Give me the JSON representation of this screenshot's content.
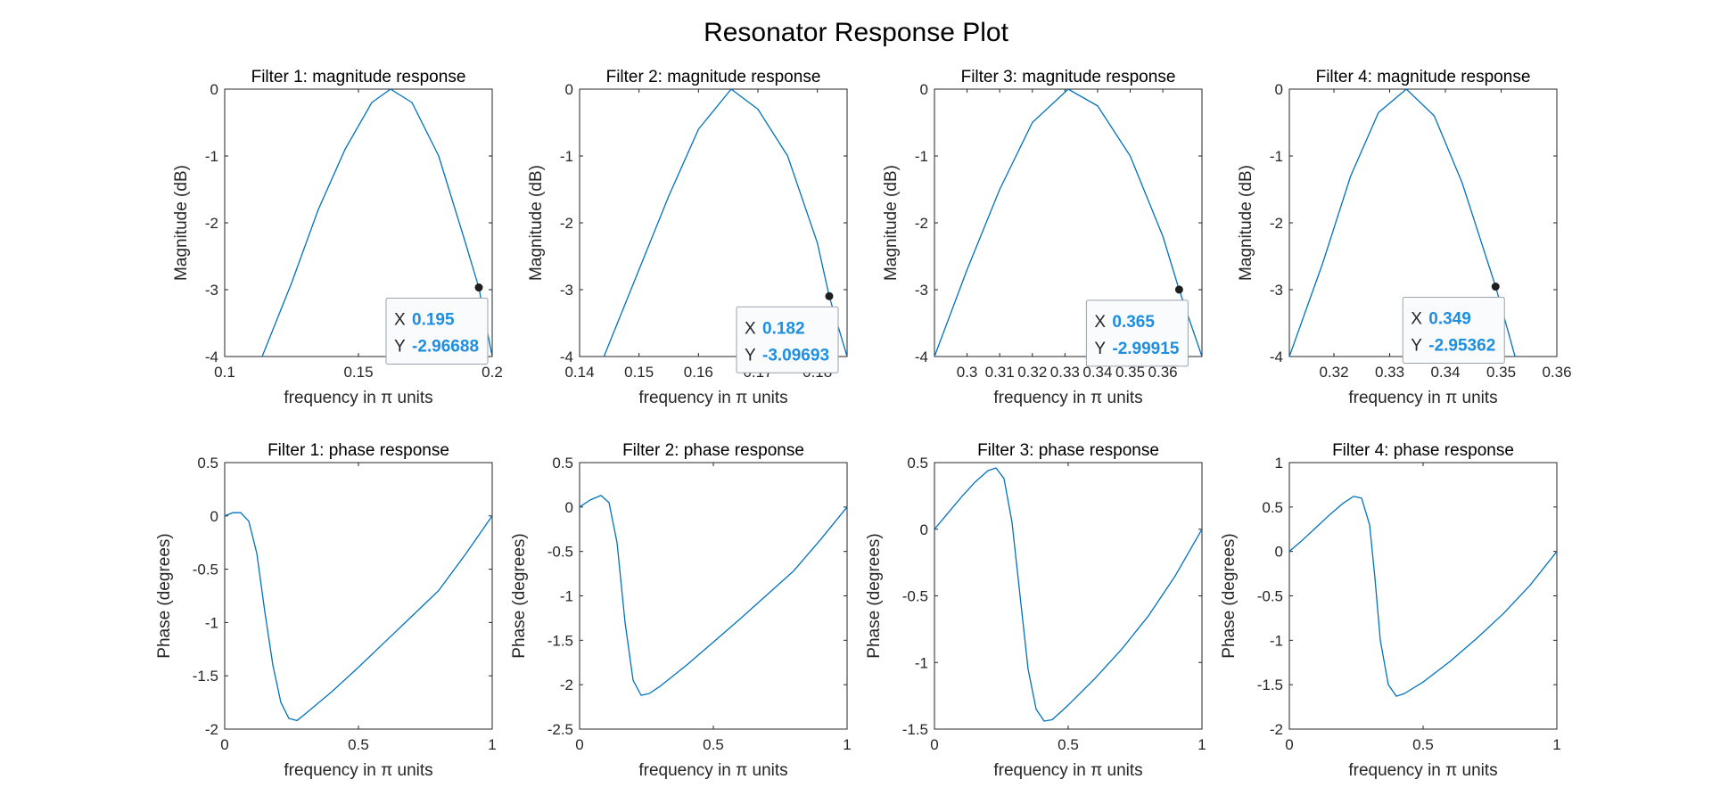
{
  "figure": {
    "title": "Resonator Response Plot"
  },
  "style": {
    "line_color": "#0072BD",
    "axis_color": "#262626",
    "datatip_value_color": "#1E8FE0"
  },
  "chart_data": [
    {
      "type": "line",
      "title": "Filter 1: magnitude response",
      "xlabel": "frequency in π units",
      "ylabel": "Magnitude (dB)",
      "xlim": [
        0.1,
        0.2
      ],
      "ylim": [
        -4,
        0
      ],
      "xticks": [
        0.1,
        0.15,
        0.2
      ],
      "xtick_labels": [
        "0.1",
        "0.15",
        "0.2"
      ],
      "yticks": [
        -4,
        -3,
        -2,
        -1,
        0
      ],
      "ytick_labels": [
        "-4",
        "-3",
        "-2",
        "-1",
        "0"
      ],
      "grid": false,
      "series": [
        {
          "x": [
            0.114,
            0.125,
            0.135,
            0.145,
            0.155,
            0.162,
            0.17,
            0.18,
            0.19,
            0.195,
            0.2
          ],
          "y": [
            -4,
            -2.9,
            -1.8,
            -0.9,
            -0.2,
            0,
            -0.2,
            -1.0,
            -2.3,
            -2.97,
            -4
          ]
        }
      ],
      "datatip": {
        "x_label": "X",
        "x_value": "0.195",
        "y_label": "Y",
        "y_value": "-2.96688",
        "x": 0.195,
        "y": -2.96688
      }
    },
    {
      "type": "line",
      "title": "Filter 2: magnitude response",
      "xlabel": "frequency in π units",
      "ylabel": "Magnitude (dB)",
      "xlim": [
        0.14,
        0.185
      ],
      "ylim": [
        -4,
        0
      ],
      "xticks": [
        0.14,
        0.15,
        0.16,
        0.17,
        0.18
      ],
      "xtick_labels": [
        "0.14",
        "0.15",
        "0.16",
        "0.17",
        "0.18"
      ],
      "yticks": [
        -4,
        -3,
        -2,
        -1,
        0
      ],
      "ytick_labels": [
        "-4",
        "-3",
        "-2",
        "-1",
        "0"
      ],
      "grid": false,
      "series": [
        {
          "x": [
            0.1441,
            0.15,
            0.155,
            0.16,
            0.1655,
            0.17,
            0.175,
            0.18,
            0.182,
            0.185
          ],
          "y": [
            -4,
            -2.7,
            -1.6,
            -0.6,
            0,
            -0.3,
            -1.0,
            -2.3,
            -3.1,
            -4
          ]
        }
      ],
      "datatip": {
        "x_label": "X",
        "x_value": "0.182",
        "y_label": "Y",
        "y_value": "-3.09693",
        "x": 0.182,
        "y": -3.09693
      }
    },
    {
      "type": "line",
      "title": "Filter 3: magnitude response",
      "xlabel": "frequency in π units",
      "ylabel": "Magnitude (dB)",
      "xlim": [
        0.29,
        0.372
      ],
      "ylim": [
        -4,
        0
      ],
      "xticks": [
        0.3,
        0.31,
        0.32,
        0.33,
        0.34,
        0.35,
        0.36
      ],
      "xtick_labels": [
        "0.3",
        "0.31",
        "0.32",
        "0.33",
        "0.34",
        "0.35",
        "0.36"
      ],
      "yticks": [
        -4,
        -3,
        -2,
        -1,
        0
      ],
      "ytick_labels": [
        "-4",
        "-3",
        "-2",
        "-1",
        "0"
      ],
      "grid": false,
      "series": [
        {
          "x": [
            0.29,
            0.3,
            0.31,
            0.32,
            0.331,
            0.34,
            0.35,
            0.36,
            0.365,
            0.372
          ],
          "y": [
            -4,
            -2.7,
            -1.5,
            -0.5,
            0,
            -0.25,
            -1.0,
            -2.2,
            -3.0,
            -4
          ]
        }
      ],
      "datatip": {
        "x_label": "X",
        "x_value": "0.365",
        "y_label": "Y",
        "y_value": "-2.99915",
        "x": 0.365,
        "y": -2.99915
      }
    },
    {
      "type": "line",
      "title": "Filter 4: magnitude response",
      "xlabel": "frequency in π units",
      "ylabel": "Magnitude (dB)",
      "xlim": [
        0.312,
        0.36
      ],
      "ylim": [
        -4,
        0
      ],
      "xticks": [
        0.32,
        0.33,
        0.34,
        0.35,
        0.36
      ],
      "xtick_labels": [
        "0.32",
        "0.33",
        "0.34",
        "0.35",
        "0.36"
      ],
      "yticks": [
        -4,
        -3,
        -2,
        -1,
        0
      ],
      "ytick_labels": [
        "-4",
        "-3",
        "-2",
        "-1",
        "0"
      ],
      "grid": false,
      "series": [
        {
          "x": [
            0.312,
            0.318,
            0.323,
            0.328,
            0.333,
            0.338,
            0.343,
            0.349,
            0.3525
          ],
          "y": [
            -4,
            -2.6,
            -1.3,
            -0.35,
            0,
            -0.4,
            -1.4,
            -2.95,
            -4
          ]
        }
      ],
      "datatip": {
        "x_label": "X",
        "x_value": "0.349",
        "y_label": "Y",
        "y_value": "-2.95362",
        "x": 0.349,
        "y": -2.95362
      }
    },
    {
      "type": "line",
      "title": "Filter 1: phase response",
      "xlabel": "frequency in π units",
      "ylabel": "Phase (degrees)",
      "xlim": [
        0,
        1
      ],
      "ylim": [
        -2,
        0.5
      ],
      "xticks": [
        0,
        0.5,
        1
      ],
      "xtick_labels": [
        "0",
        "0.5",
        "1"
      ],
      "yticks": [
        -2,
        -1.5,
        -1,
        -0.5,
        0,
        0.5
      ],
      "ytick_labels": [
        "-2",
        "-1.5",
        "-1",
        "-0.5",
        "0",
        "0.5"
      ],
      "grid": false,
      "series": [
        {
          "x": [
            0,
            0.03,
            0.06,
            0.09,
            0.12,
            0.15,
            0.18,
            0.21,
            0.24,
            0.27,
            0.3,
            0.4,
            0.5,
            0.6,
            0.7,
            0.8,
            0.9,
            1.0
          ],
          "y": [
            0,
            0.03,
            0.03,
            -0.05,
            -0.35,
            -0.9,
            -1.4,
            -1.75,
            -1.9,
            -1.92,
            -1.86,
            -1.65,
            -1.42,
            -1.18,
            -0.94,
            -0.7,
            -0.36,
            0
          ]
        }
      ],
      "datatip": null
    },
    {
      "type": "line",
      "title": "Filter 2: phase response",
      "xlabel": "frequency in π units",
      "ylabel": "Phase (degrees)",
      "xlim": [
        0,
        1
      ],
      "ylim": [
        -2.5,
        0.5
      ],
      "xticks": [
        0,
        0.5,
        1
      ],
      "xtick_labels": [
        "0",
        "0.5",
        "1"
      ],
      "yticks": [
        -2.5,
        -2,
        -1.5,
        -1,
        -0.5,
        0,
        0.5
      ],
      "ytick_labels": [
        "-2.5",
        "-2",
        "-1.5",
        "-1",
        "-0.5",
        "0",
        "0.5"
      ],
      "grid": false,
      "series": [
        {
          "x": [
            0,
            0.04,
            0.08,
            0.11,
            0.14,
            0.17,
            0.2,
            0.23,
            0.26,
            0.3,
            0.4,
            0.5,
            0.6,
            0.7,
            0.8,
            0.9,
            1.0
          ],
          "y": [
            0,
            0.08,
            0.13,
            0.05,
            -0.4,
            -1.3,
            -1.95,
            -2.12,
            -2.1,
            -2.02,
            -1.78,
            -1.52,
            -1.26,
            -0.99,
            -0.72,
            -0.37,
            0
          ]
        }
      ],
      "datatip": null
    },
    {
      "type": "line",
      "title": "Filter 3: phase response",
      "xlabel": "frequency in π units",
      "ylabel": "Phase (degrees)",
      "xlim": [
        0,
        1
      ],
      "ylim": [
        -1.5,
        0.5
      ],
      "xticks": [
        0,
        0.5,
        1
      ],
      "xtick_labels": [
        "0",
        "0.5",
        "1"
      ],
      "yticks": [
        -1.5,
        -1,
        -0.5,
        0,
        0.5
      ],
      "ytick_labels": [
        "-1.5",
        "-1",
        "-0.5",
        "0",
        "0.5"
      ],
      "grid": false,
      "series": [
        {
          "x": [
            0,
            0.05,
            0.1,
            0.15,
            0.2,
            0.23,
            0.26,
            0.29,
            0.32,
            0.35,
            0.38,
            0.41,
            0.44,
            0.5,
            0.6,
            0.7,
            0.8,
            0.9,
            1.0
          ],
          "y": [
            0,
            0.12,
            0.24,
            0.35,
            0.44,
            0.46,
            0.38,
            0.05,
            -0.5,
            -1.05,
            -1.35,
            -1.44,
            -1.43,
            -1.32,
            -1.12,
            -0.9,
            -0.65,
            -0.35,
            0
          ]
        }
      ],
      "datatip": null
    },
    {
      "type": "line",
      "title": "Filter 4: phase response",
      "xlabel": "frequency in π units",
      "ylabel": "Phase (degrees)",
      "xlim": [
        0,
        1
      ],
      "ylim": [
        -2,
        1
      ],
      "xticks": [
        0,
        0.5,
        1
      ],
      "xtick_labels": [
        "0",
        "0.5",
        "1"
      ],
      "yticks": [
        -2,
        -1.5,
        -1,
        -0.5,
        0,
        0.5,
        1
      ],
      "ytick_labels": [
        "-2",
        "-1.5",
        "-1",
        "-0.5",
        "0",
        "0.5",
        "1"
      ],
      "grid": false,
      "series": [
        {
          "x": [
            0,
            0.05,
            0.1,
            0.15,
            0.2,
            0.24,
            0.27,
            0.3,
            0.32,
            0.34,
            0.37,
            0.4,
            0.43,
            0.5,
            0.6,
            0.7,
            0.8,
            0.9,
            1.0
          ],
          "y": [
            0,
            0.13,
            0.27,
            0.41,
            0.54,
            0.62,
            0.6,
            0.3,
            -0.3,
            -1.0,
            -1.5,
            -1.63,
            -1.6,
            -1.47,
            -1.24,
            -0.98,
            -0.7,
            -0.38,
            0
          ]
        }
      ],
      "datatip": null
    }
  ]
}
